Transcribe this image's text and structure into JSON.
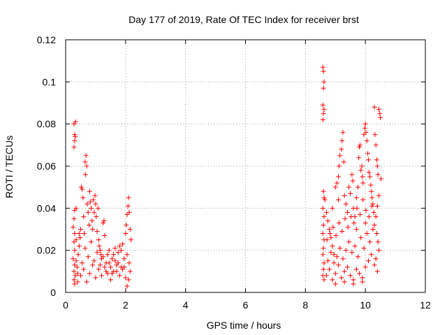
{
  "chart_data": {
    "type": "scatter",
    "title": "Day 177 of 2019, Rate Of TEC Index for receiver brst",
    "xlabel": "GPS time / hours",
    "ylabel": "ROTI / TECUs",
    "xlim": [
      0,
      12
    ],
    "ylim": [
      0,
      0.12
    ],
    "xticks": [
      0,
      2,
      4,
      6,
      8,
      10,
      12
    ],
    "xtick_labels": [
      "0",
      "2",
      "4",
      "6",
      "8",
      "10",
      "12"
    ],
    "yticks": [
      0,
      0.02,
      0.04,
      0.06,
      0.08,
      0.1,
      0.12
    ],
    "ytick_labels": [
      "0",
      "0.02",
      "0.04",
      "0.06",
      "0.08",
      "0.1",
      "0.12"
    ],
    "grid": true,
    "marker": "+",
    "marker_color": "#ff0000",
    "series": [
      {
        "name": "ROTI",
        "points": [
          [
            0.28,
            0.08
          ],
          [
            0.3,
            0.075
          ],
          [
            0.3,
            0.072
          ],
          [
            0.28,
            0.069
          ],
          [
            0.33,
            0.081
          ],
          [
            0.32,
            0.074
          ],
          [
            0.35,
            0.04
          ],
          [
            0.3,
            0.039
          ],
          [
            0.28,
            0.035
          ],
          [
            0.25,
            0.031
          ],
          [
            0.3,
            0.028
          ],
          [
            0.28,
            0.024
          ],
          [
            0.3,
            0.02
          ],
          [
            0.25,
            0.016
          ],
          [
            0.3,
            0.013
          ],
          [
            0.28,
            0.01
          ],
          [
            0.32,
            0.008
          ],
          [
            0.28,
            0.006
          ],
          [
            0.3,
            0.004
          ],
          [
            0.35,
            0.015
          ],
          [
            0.38,
            0.012
          ],
          [
            0.4,
            0.009
          ],
          [
            0.42,
            0.018
          ],
          [
            0.45,
            0.022
          ],
          [
            0.48,
            0.026
          ],
          [
            0.5,
            0.03
          ],
          [
            0.52,
            0.05
          ],
          [
            0.55,
            0.049
          ],
          [
            0.58,
            0.045
          ],
          [
            0.6,
            0.036
          ],
          [
            0.62,
            0.028
          ],
          [
            0.65,
            0.062
          ],
          [
            0.68,
            0.065
          ],
          [
            0.7,
            0.06
          ],
          [
            0.66,
            0.056
          ],
          [
            0.72,
            0.042
          ],
          [
            0.75,
            0.038
          ],
          [
            0.78,
            0.032
          ],
          [
            0.8,
            0.048
          ],
          [
            0.82,
            0.043
          ],
          [
            0.85,
            0.04
          ],
          [
            0.88,
            0.034
          ],
          [
            0.9,
            0.03
          ],
          [
            0.92,
            0.044
          ],
          [
            0.95,
            0.038
          ],
          [
            0.98,
            0.046
          ],
          [
            1.0,
            0.042
          ],
          [
            1.02,
            0.036
          ],
          [
            1.05,
            0.029
          ],
          [
            1.08,
            0.04
          ],
          [
            1.1,
            0.025
          ],
          [
            1.12,
            0.022
          ],
          [
            1.15,
            0.02
          ],
          [
            1.18,
            0.018
          ],
          [
            1.2,
            0.016
          ],
          [
            1.25,
            0.033
          ],
          [
            1.28,
            0.034
          ],
          [
            1.3,
            0.027
          ],
          [
            1.35,
            0.014
          ],
          [
            1.4,
            0.018
          ],
          [
            1.45,
            0.02
          ],
          [
            1.5,
            0.012
          ],
          [
            1.55,
            0.016
          ],
          [
            1.6,
            0.018
          ],
          [
            1.65,
            0.021
          ],
          [
            1.7,
            0.01
          ],
          [
            1.75,
            0.019
          ],
          [
            1.8,
            0.022
          ],
          [
            1.85,
            0.02
          ],
          [
            1.9,
            0.023
          ],
          [
            1.95,
            0.012
          ],
          [
            2.0,
            0.028
          ],
          [
            2.02,
            0.032
          ],
          [
            2.05,
            0.037
          ],
          [
            2.08,
            0.041
          ],
          [
            2.1,
            0.045
          ],
          [
            2.12,
            0.038
          ],
          [
            2.15,
            0.03
          ],
          [
            2.18,
            0.025
          ],
          [
            2.05,
            0.003
          ],
          [
            2.1,
            0.006
          ],
          [
            0.5,
            0.008
          ],
          [
            0.6,
            0.011
          ],
          [
            0.7,
            0.005
          ],
          [
            0.8,
            0.009
          ],
          [
            0.9,
            0.013
          ],
          [
            1.0,
            0.007
          ],
          [
            1.1,
            0.011
          ],
          [
            1.2,
            0.008
          ],
          [
            1.3,
            0.012
          ],
          [
            1.4,
            0.009
          ],
          [
            1.5,
            0.006
          ],
          [
            1.6,
            0.01
          ],
          [
            1.7,
            0.013
          ],
          [
            1.8,
            0.008
          ],
          [
            1.9,
            0.011
          ],
          [
            2.0,
            0.007
          ],
          [
            2.15,
            0.01
          ],
          [
            0.4,
            0.005
          ],
          [
            0.55,
            0.014
          ],
          [
            0.75,
            0.017
          ],
          [
            0.95,
            0.015
          ],
          [
            1.15,
            0.013
          ],
          [
            1.35,
            0.01
          ],
          [
            1.55,
            0.009
          ],
          [
            1.75,
            0.014
          ],
          [
            1.95,
            0.016
          ],
          [
            0.35,
            0.025
          ],
          [
            0.45,
            0.028
          ],
          [
            0.65,
            0.021
          ],
          [
            0.85,
            0.024
          ],
          [
            1.05,
            0.019
          ],
          [
            1.25,
            0.017
          ],
          [
            1.45,
            0.014
          ],
          [
            1.65,
            0.015
          ],
          [
            1.85,
            0.012
          ],
          [
            2.05,
            0.018
          ],
          [
            2.12,
            0.014
          ],
          [
            8.58,
            0.107
          ],
          [
            8.6,
            0.105
          ],
          [
            8.62,
            0.1
          ],
          [
            8.6,
            0.097
          ],
          [
            8.58,
            0.089
          ],
          [
            8.62,
            0.087
          ],
          [
            8.6,
            0.085
          ],
          [
            8.58,
            0.082
          ],
          [
            8.6,
            0.048
          ],
          [
            8.62,
            0.045
          ],
          [
            8.65,
            0.044
          ],
          [
            8.58,
            0.04
          ],
          [
            8.62,
            0.036
          ],
          [
            8.6,
            0.032
          ],
          [
            8.58,
            0.028
          ],
          [
            8.62,
            0.025
          ],
          [
            8.6,
            0.021
          ],
          [
            8.58,
            0.018
          ],
          [
            8.62,
            0.014
          ],
          [
            8.6,
            0.011
          ],
          [
            8.58,
            0.008
          ],
          [
            8.62,
            0.006
          ],
          [
            8.7,
            0.038
          ],
          [
            8.75,
            0.034
          ],
          [
            8.8,
            0.03
          ],
          [
            8.85,
            0.026
          ],
          [
            8.9,
            0.022
          ],
          [
            8.95,
            0.018
          ],
          [
            9.0,
            0.05
          ],
          [
            9.05,
            0.052
          ],
          [
            9.1,
            0.055
          ],
          [
            9.12,
            0.06
          ],
          [
            9.15,
            0.065
          ],
          [
            9.2,
            0.068
          ],
          [
            9.22,
            0.072
          ],
          [
            9.25,
            0.076
          ],
          [
            9.28,
            0.062
          ],
          [
            9.3,
            0.046
          ],
          [
            9.35,
            0.042
          ],
          [
            9.4,
            0.038
          ],
          [
            9.45,
            0.05
          ],
          [
            9.5,
            0.047
          ],
          [
            9.55,
            0.056
          ],
          [
            9.58,
            0.053
          ],
          [
            9.6,
            0.04
          ],
          [
            9.65,
            0.036
          ],
          [
            9.7,
            0.045
          ],
          [
            9.75,
            0.05
          ],
          [
            9.78,
            0.064
          ],
          [
            9.8,
            0.069
          ],
          [
            9.82,
            0.07
          ],
          [
            9.85,
            0.058
          ],
          [
            9.88,
            0.06
          ],
          [
            9.9,
            0.055
          ],
          [
            9.92,
            0.052
          ],
          [
            9.95,
            0.075
          ],
          [
            9.98,
            0.078
          ],
          [
            10.0,
            0.08
          ],
          [
            10.02,
            0.076
          ],
          [
            10.05,
            0.072
          ],
          [
            10.08,
            0.066
          ],
          [
            10.1,
            0.063
          ],
          [
            10.12,
            0.057
          ],
          [
            10.15,
            0.055
          ],
          [
            10.18,
            0.051
          ],
          [
            10.2,
            0.048
          ],
          [
            10.22,
            0.045
          ],
          [
            10.25,
            0.042
          ],
          [
            10.28,
            0.038
          ],
          [
            10.3,
            0.088
          ],
          [
            10.32,
            0.075
          ],
          [
            10.35,
            0.07
          ],
          [
            10.38,
            0.063
          ],
          [
            10.4,
            0.06
          ],
          [
            10.42,
            0.056
          ],
          [
            10.45,
            0.087
          ],
          [
            10.48,
            0.085
          ],
          [
            10.5,
            0.083
          ],
          [
            10.52,
            0.054
          ],
          [
            10.45,
            0.046
          ],
          [
            10.4,
            0.041
          ],
          [
            10.35,
            0.036
          ],
          [
            10.3,
            0.032
          ],
          [
            10.38,
            0.028
          ],
          [
            10.42,
            0.024
          ],
          [
            10.45,
            0.02
          ],
          [
            10.35,
            0.016
          ],
          [
            10.3,
            0.013
          ],
          [
            10.4,
            0.01
          ],
          [
            8.7,
            0.008
          ],
          [
            8.8,
            0.011
          ],
          [
            8.9,
            0.006
          ],
          [
            9.0,
            0.009
          ],
          [
            9.1,
            0.013
          ],
          [
            9.2,
            0.007
          ],
          [
            9.3,
            0.01
          ],
          [
            9.4,
            0.012
          ],
          [
            9.5,
            0.008
          ],
          [
            9.6,
            0.006
          ],
          [
            9.7,
            0.011
          ],
          [
            9.8,
            0.009
          ],
          [
            9.9,
            0.007
          ],
          [
            10.0,
            0.012
          ],
          [
            10.1,
            0.015
          ],
          [
            10.2,
            0.018
          ],
          [
            8.75,
            0.015
          ],
          [
            8.85,
            0.019
          ],
          [
            8.95,
            0.014
          ],
          [
            9.05,
            0.017
          ],
          [
            9.15,
            0.021
          ],
          [
            9.25,
            0.016
          ],
          [
            9.35,
            0.02
          ],
          [
            9.45,
            0.024
          ],
          [
            9.55,
            0.019
          ],
          [
            9.65,
            0.022
          ],
          [
            9.75,
            0.017
          ],
          [
            9.85,
            0.026
          ],
          [
            9.95,
            0.021
          ],
          [
            10.05,
            0.028
          ],
          [
            10.15,
            0.024
          ],
          [
            10.25,
            0.03
          ],
          [
            8.72,
            0.025
          ],
          [
            8.82,
            0.028
          ],
          [
            8.92,
            0.031
          ],
          [
            9.02,
            0.027
          ],
          [
            9.12,
            0.033
          ],
          [
            9.22,
            0.029
          ],
          [
            9.32,
            0.035
          ],
          [
            9.42,
            0.031
          ],
          [
            9.52,
            0.036
          ],
          [
            9.62,
            0.033
          ],
          [
            9.72,
            0.04
          ],
          [
            9.82,
            0.037
          ],
          [
            9.92,
            0.044
          ],
          [
            10.02,
            0.039
          ],
          [
            10.12,
            0.036
          ],
          [
            10.22,
            0.041
          ],
          [
            9.0,
            0.004
          ],
          [
            9.3,
            0.005
          ],
          [
            9.6,
            0.004
          ],
          [
            9.9,
            0.005
          ],
          [
            8.9,
            0.04
          ],
          [
            9.1,
            0.044
          ],
          [
            9.7,
            0.03
          ],
          [
            10.0,
            0.033
          ]
        ]
      }
    ]
  }
}
